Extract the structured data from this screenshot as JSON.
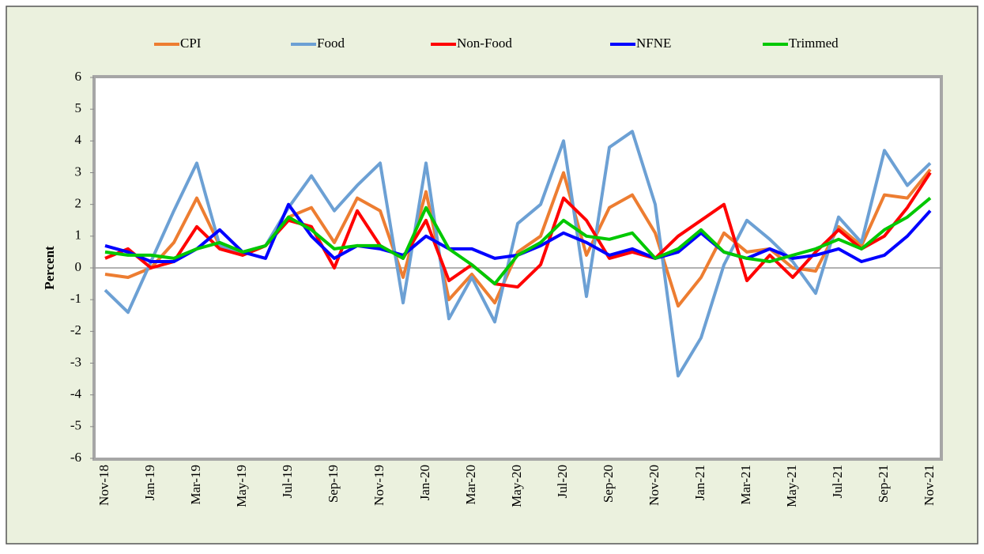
{
  "chart_data": {
    "type": "line",
    "y_label": "Percent",
    "categories": [
      "Nov-18",
      null,
      "Jan-19",
      null,
      "Mar-19",
      null,
      "May-19",
      null,
      "Jul-19",
      null,
      "Sep-19",
      null,
      "Nov-19",
      null,
      "Jan-20",
      null,
      "Mar-20",
      null,
      "May-20",
      null,
      "Jul-20",
      null,
      "Sep-20",
      null,
      "Nov-20",
      null,
      "Jan-21",
      null,
      "Mar-21",
      null,
      "May-21",
      null,
      "Jul-21",
      null,
      "Sep-21",
      null,
      "Nov-21"
    ],
    "series": [
      {
        "name": "CPI",
        "color": "#ed7d31",
        "values": [
          -0.2,
          -0.3,
          0.0,
          0.8,
          2.2,
          0.7,
          0.4,
          0.7,
          1.6,
          1.9,
          0.8,
          2.2,
          1.8,
          -0.3,
          2.4,
          -1.0,
          -0.2,
          -1.1,
          0.5,
          1.0,
          3.0,
          0.4,
          1.9,
          2.3,
          1.1,
          -1.2,
          -0.3,
          1.1,
          0.5,
          0.6,
          0.0,
          -0.1,
          1.3,
          0.7,
          2.3,
          2.2,
          3.1
        ]
      },
      {
        "name": "Food",
        "color": "#6ca0d4",
        "values": [
          -0.7,
          -1.4,
          0.2,
          1.8,
          3.3,
          0.7,
          0.5,
          0.7,
          1.9,
          2.9,
          1.8,
          2.6,
          3.3,
          -1.1,
          3.3,
          -1.6,
          -0.3,
          -1.7,
          1.4,
          2.0,
          4.0,
          -0.9,
          3.8,
          4.3,
          2.0,
          -3.4,
          -2.2,
          0.1,
          1.5,
          0.9,
          0.2,
          -0.8,
          1.6,
          0.8,
          3.7,
          2.6,
          3.3
        ]
      },
      {
        "name": "Non-Food",
        "color": "#ff0000",
        "values": [
          0.3,
          0.6,
          0.0,
          0.2,
          1.3,
          0.6,
          0.4,
          0.7,
          1.5,
          1.3,
          0.0,
          1.8,
          0.7,
          0.3,
          1.5,
          -0.4,
          0.1,
          -0.5,
          -0.6,
          0.1,
          2.2,
          1.5,
          0.3,
          0.5,
          0.3,
          1.0,
          1.5,
          2.0,
          -0.4,
          0.4,
          -0.3,
          0.5,
          1.2,
          0.6,
          1.0,
          1.9,
          3.0
        ]
      },
      {
        "name": "NFNE",
        "color": "#0000ff",
        "values": [
          0.7,
          0.5,
          0.2,
          0.2,
          0.6,
          1.2,
          0.5,
          0.3,
          2.0,
          1.0,
          0.3,
          0.7,
          0.6,
          0.4,
          1.0,
          0.6,
          0.6,
          0.3,
          0.4,
          0.7,
          1.1,
          0.8,
          0.4,
          0.6,
          0.3,
          0.5,
          1.1,
          0.5,
          0.3,
          0.6,
          0.3,
          0.4,
          0.6,
          0.2,
          0.4,
          1.0,
          1.8
        ]
      },
      {
        "name": "Trimmed",
        "color": "#00c800",
        "values": [
          0.5,
          0.4,
          0.4,
          0.3,
          0.6,
          0.8,
          0.5,
          0.7,
          1.6,
          1.2,
          0.6,
          0.7,
          0.7,
          0.3,
          1.9,
          0.6,
          0.1,
          -0.5,
          0.4,
          0.8,
          1.5,
          1.0,
          0.9,
          1.1,
          0.3,
          0.6,
          1.2,
          0.5,
          0.3,
          0.2,
          0.4,
          0.6,
          0.9,
          0.6,
          1.2,
          1.6,
          2.2
        ]
      }
    ],
    "ylim": [
      -6,
      6
    ],
    "yticks": [
      -6,
      -5,
      -4,
      -3,
      -2,
      -1,
      0,
      1,
      2,
      3,
      4,
      5,
      6
    ],
    "legend": "top",
    "grid": false
  }
}
